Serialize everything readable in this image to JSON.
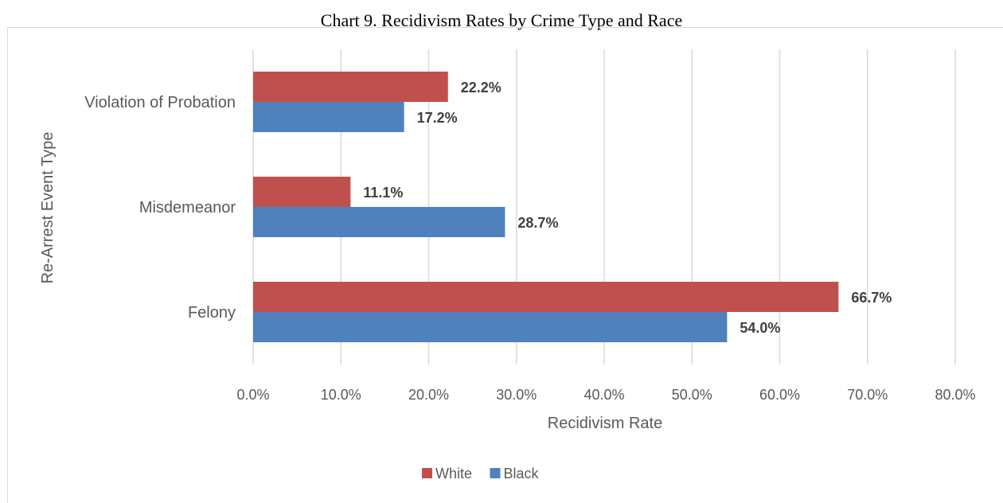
{
  "chart_data": {
    "type": "bar",
    "orientation": "horizontal",
    "title": "Chart 9.  Recidivism Rates by Crime Type and Race",
    "xlabel": "Recidivism Rate",
    "ylabel": "Re-Arrest Event Type",
    "categories": [
      "Violation of Probation",
      "Misdemeanor",
      "Felony"
    ],
    "series": [
      {
        "name": "White",
        "color": "#c0504d",
        "values": [
          22.2,
          11.1,
          66.7
        ],
        "labels": [
          "22.2%",
          "11.1%",
          "66.7%"
        ]
      },
      {
        "name": "Black",
        "color": "#4f81bd",
        "values": [
          17.2,
          28.7,
          54.0
        ],
        "labels": [
          "17.2%",
          "28.7%",
          "54.0%"
        ]
      }
    ],
    "xlim": [
      0,
      80
    ],
    "xticks": [
      "0.0%",
      "10.0%",
      "20.0%",
      "30.0%",
      "40.0%",
      "50.0%",
      "60.0%",
      "70.0%",
      "80.0%"
    ],
    "grid": true,
    "legend_position": "bottom"
  }
}
